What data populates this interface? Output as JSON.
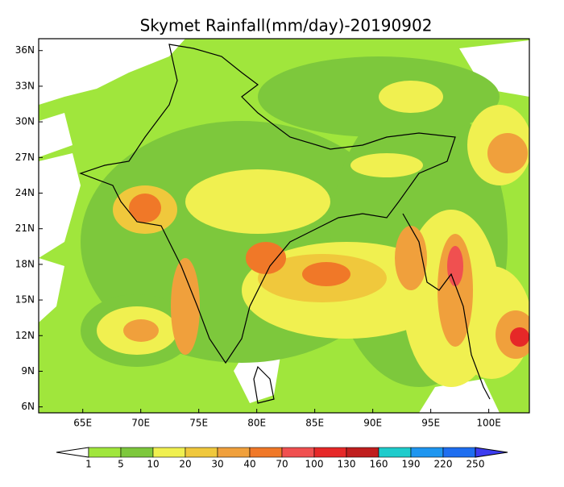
{
  "title": "Skymet Rainfall(mm/day)-20190902",
  "map": {
    "lonlim": [
      61.2,
      103.5
    ],
    "latlim": [
      5.5,
      37
    ],
    "lon_ticks": [
      {
        "value": 65,
        "label": "65E"
      },
      {
        "value": 70,
        "label": "70E"
      },
      {
        "value": 75,
        "label": "75E"
      },
      {
        "value": 80,
        "label": "80E"
      },
      {
        "value": 85,
        "label": "85E"
      },
      {
        "value": 90,
        "label": "90E"
      },
      {
        "value": 95,
        "label": "95E"
      },
      {
        "value": 100,
        "label": "100E"
      }
    ],
    "lat_ticks": [
      {
        "value": 36,
        "label": "36N"
      },
      {
        "value": 33,
        "label": "33N"
      },
      {
        "value": 30,
        "label": "30N"
      },
      {
        "value": 27,
        "label": "27N"
      },
      {
        "value": 24,
        "label": "24N"
      },
      {
        "value": 21,
        "label": "21N"
      },
      {
        "value": 18,
        "label": "18N"
      },
      {
        "value": 15,
        "label": "15N"
      },
      {
        "value": 12,
        "label": "12N"
      },
      {
        "value": 9,
        "label": "9N"
      },
      {
        "value": 6,
        "label": "6N"
      }
    ]
  },
  "colorbar": {
    "levels": [
      1,
      5,
      10,
      20,
      30,
      40,
      70,
      100,
      130,
      160,
      190,
      220,
      250
    ],
    "colors": [
      "#ffffff",
      "#a0e63c",
      "#7dc83c",
      "#f0f050",
      "#f0c83c",
      "#f0a03c",
      "#f07828",
      "#f05050",
      "#e62828",
      "#c01e1e",
      "#1ecccc",
      "#1e96f0",
      "#1e6ef0",
      "#3c3cf0"
    ]
  }
}
